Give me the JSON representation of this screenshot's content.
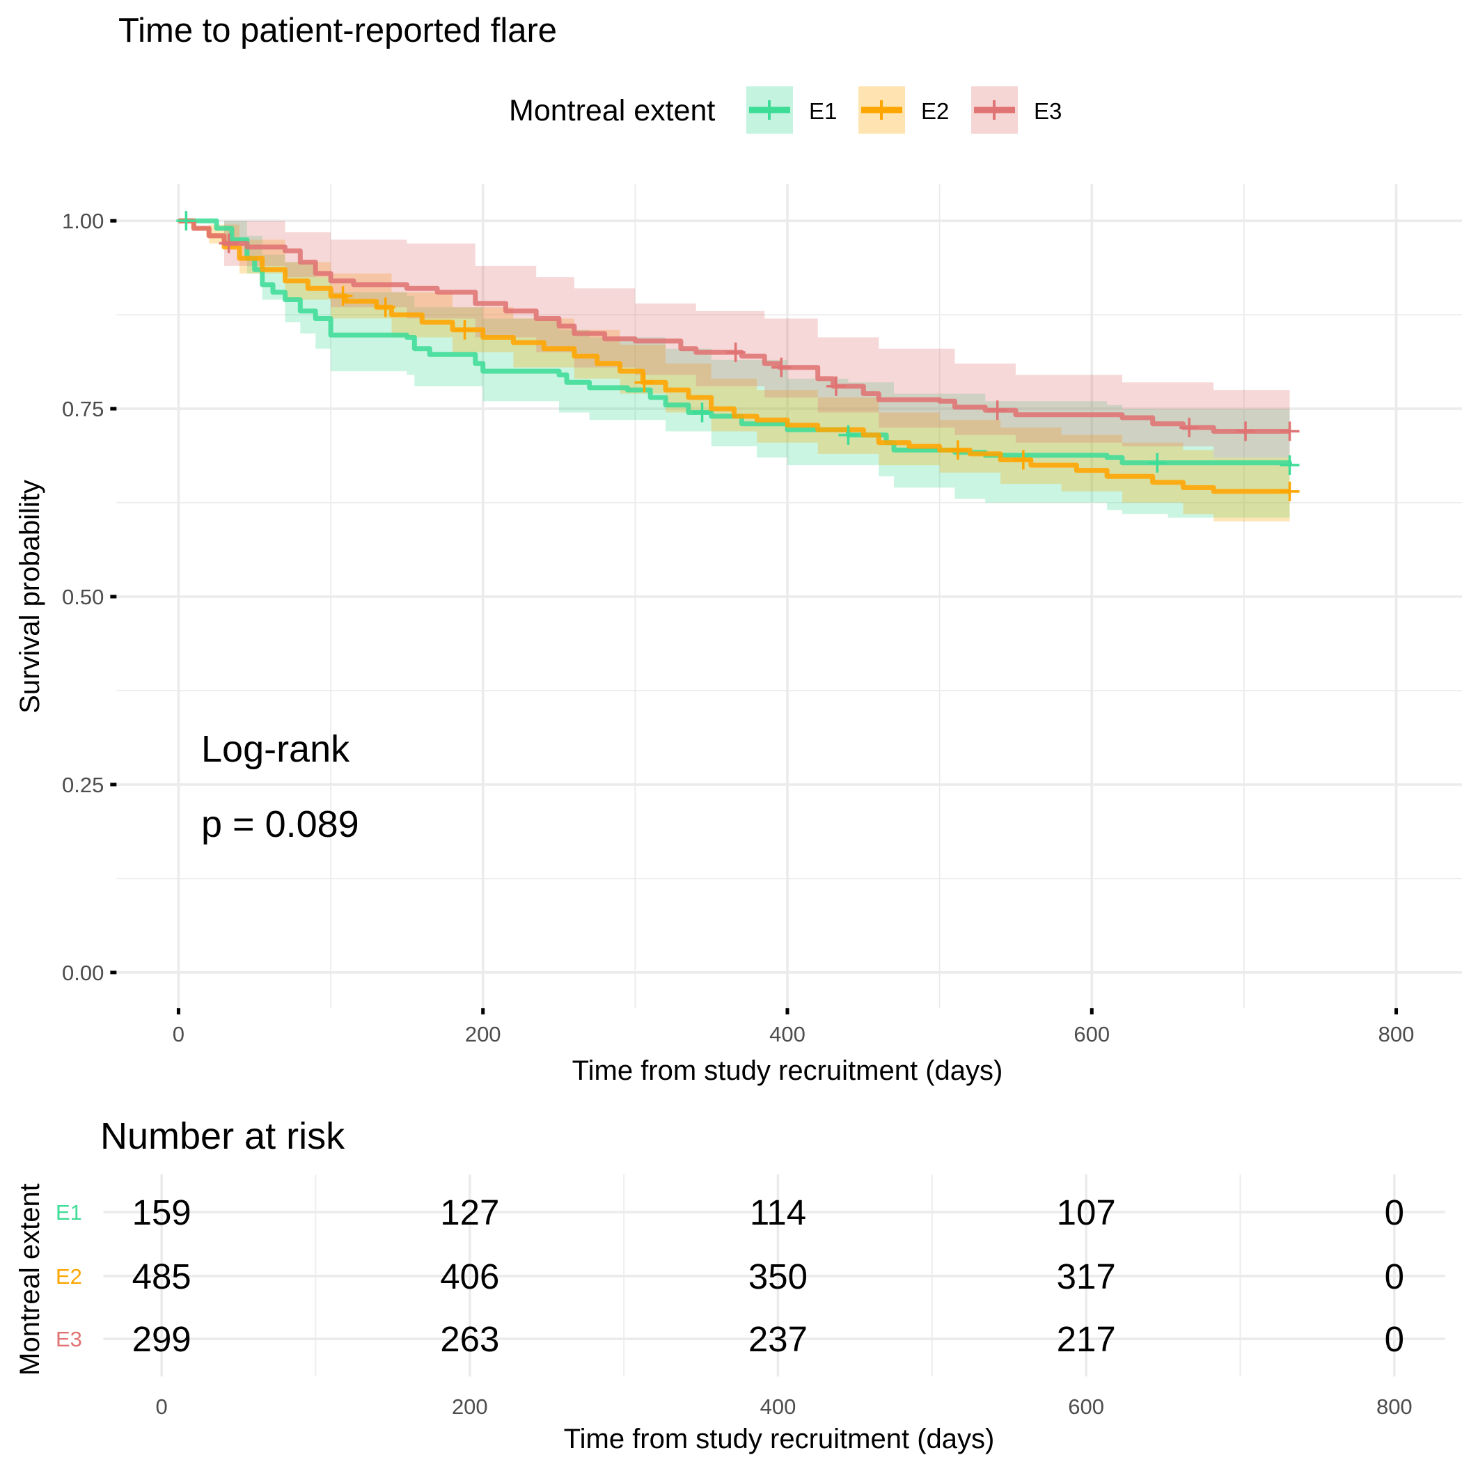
{
  "chart_data": {
    "type": "line",
    "subtype": "kaplan-meier",
    "title": "Time to patient-reported flare",
    "xlabel": "Time from study recruitment (days)",
    "ylabel": "Survival probability",
    "xlim": [
      0,
      800
    ],
    "ylim": [
      0,
      1
    ],
    "xticks": [
      0,
      200,
      400,
      600,
      800
    ],
    "yticks": [
      0,
      0.25,
      0.5,
      0.75,
      1.0
    ],
    "ytick_labels": [
      "0.00",
      "0.25",
      "0.50",
      "0.75",
      "1.00"
    ],
    "xtick_labels": [
      "0",
      "200",
      "400",
      "600",
      "800"
    ],
    "grid": true,
    "legend": {
      "title": "Montreal extent",
      "position": "top",
      "entries": [
        "E1",
        "E2",
        "E3"
      ]
    },
    "annotation": {
      "line1": "Log-rank",
      "line2": "p = 0.089"
    },
    "series": [
      {
        "name": "E1",
        "color": "#3DDC97",
        "steps": [
          [
            0,
            1.0
          ],
          [
            25,
            0.99
          ],
          [
            35,
            0.975
          ],
          [
            45,
            0.95
          ],
          [
            50,
            0.935
          ],
          [
            55,
            0.915
          ],
          [
            62,
            0.905
          ],
          [
            70,
            0.895
          ],
          [
            80,
            0.88
          ],
          [
            90,
            0.87
          ],
          [
            100,
            0.848
          ],
          [
            150,
            0.845
          ],
          [
            155,
            0.83
          ],
          [
            165,
            0.822
          ],
          [
            195,
            0.81
          ],
          [
            200,
            0.8
          ],
          [
            250,
            0.795
          ],
          [
            255,
            0.785
          ],
          [
            270,
            0.778
          ],
          [
            295,
            0.775
          ],
          [
            310,
            0.765
          ],
          [
            320,
            0.755
          ],
          [
            335,
            0.745
          ],
          [
            350,
            0.74
          ],
          [
            370,
            0.73
          ],
          [
            400,
            0.722
          ],
          [
            440,
            0.715
          ],
          [
            465,
            0.705
          ],
          [
            470,
            0.695
          ],
          [
            510,
            0.692
          ],
          [
            530,
            0.688
          ],
          [
            610,
            0.685
          ],
          [
            620,
            0.678
          ],
          [
            730,
            0.675
          ]
        ],
        "lower": [
          [
            0,
            1.0
          ],
          [
            30,
            0.97
          ],
          [
            45,
            0.93
          ],
          [
            55,
            0.895
          ],
          [
            70,
            0.865
          ],
          [
            80,
            0.85
          ],
          [
            90,
            0.83
          ],
          [
            100,
            0.8
          ],
          [
            150,
            0.795
          ],
          [
            155,
            0.78
          ],
          [
            200,
            0.76
          ],
          [
            250,
            0.745
          ],
          [
            270,
            0.735
          ],
          [
            320,
            0.72
          ],
          [
            350,
            0.7
          ],
          [
            380,
            0.685
          ],
          [
            400,
            0.675
          ],
          [
            460,
            0.66
          ],
          [
            470,
            0.645
          ],
          [
            510,
            0.63
          ],
          [
            530,
            0.625
          ],
          [
            610,
            0.615
          ],
          [
            620,
            0.61
          ],
          [
            650,
            0.605
          ],
          [
            730,
            0.6
          ]
        ],
        "upper": [
          [
            0,
            1.0
          ],
          [
            30,
            1.0
          ],
          [
            45,
            0.98
          ],
          [
            55,
            0.955
          ],
          [
            70,
            0.945
          ],
          [
            90,
            0.925
          ],
          [
            100,
            0.905
          ],
          [
            150,
            0.9
          ],
          [
            155,
            0.885
          ],
          [
            200,
            0.87
          ],
          [
            250,
            0.855
          ],
          [
            270,
            0.845
          ],
          [
            320,
            0.83
          ],
          [
            350,
            0.815
          ],
          [
            400,
            0.79
          ],
          [
            440,
            0.785
          ],
          [
            470,
            0.77
          ],
          [
            530,
            0.76
          ],
          [
            610,
            0.755
          ],
          [
            620,
            0.75
          ],
          [
            730,
            0.745
          ]
        ],
        "censor_times": [
          5,
          344,
          440,
          643,
          730
        ]
      },
      {
        "name": "E2",
        "color": "#FFA500",
        "steps": [
          [
            0,
            1.0
          ],
          [
            10,
            0.99
          ],
          [
            20,
            0.98
          ],
          [
            30,
            0.965
          ],
          [
            40,
            0.95
          ],
          [
            55,
            0.935
          ],
          [
            70,
            0.92
          ],
          [
            85,
            0.91
          ],
          [
            100,
            0.9
          ],
          [
            110,
            0.893
          ],
          [
            130,
            0.885
          ],
          [
            140,
            0.875
          ],
          [
            160,
            0.865
          ],
          [
            180,
            0.855
          ],
          [
            200,
            0.845
          ],
          [
            220,
            0.838
          ],
          [
            240,
            0.83
          ],
          [
            260,
            0.82
          ],
          [
            275,
            0.81
          ],
          [
            290,
            0.8
          ],
          [
            305,
            0.785
          ],
          [
            320,
            0.775
          ],
          [
            335,
            0.765
          ],
          [
            350,
            0.75
          ],
          [
            365,
            0.74
          ],
          [
            380,
            0.735
          ],
          [
            400,
            0.728
          ],
          [
            420,
            0.722
          ],
          [
            450,
            0.715
          ],
          [
            460,
            0.705
          ],
          [
            480,
            0.7
          ],
          [
            500,
            0.695
          ],
          [
            520,
            0.69
          ],
          [
            540,
            0.682
          ],
          [
            560,
            0.675
          ],
          [
            590,
            0.668
          ],
          [
            610,
            0.66
          ],
          [
            640,
            0.652
          ],
          [
            660,
            0.645
          ],
          [
            680,
            0.64
          ],
          [
            730,
            0.64
          ]
        ],
        "lower": [
          [
            0,
            1.0
          ],
          [
            20,
            0.97
          ],
          [
            40,
            0.93
          ],
          [
            70,
            0.895
          ],
          [
            100,
            0.87
          ],
          [
            140,
            0.845
          ],
          [
            180,
            0.825
          ],
          [
            220,
            0.805
          ],
          [
            260,
            0.79
          ],
          [
            290,
            0.77
          ],
          [
            320,
            0.745
          ],
          [
            350,
            0.72
          ],
          [
            380,
            0.705
          ],
          [
            420,
            0.69
          ],
          [
            460,
            0.675
          ],
          [
            500,
            0.665
          ],
          [
            540,
            0.65
          ],
          [
            580,
            0.64
          ],
          [
            620,
            0.625
          ],
          [
            660,
            0.61
          ],
          [
            680,
            0.6
          ],
          [
            730,
            0.6
          ]
        ],
        "upper": [
          [
            0,
            1.0
          ],
          [
            20,
            0.995
          ],
          [
            40,
            0.975
          ],
          [
            70,
            0.945
          ],
          [
            100,
            0.93
          ],
          [
            140,
            0.905
          ],
          [
            180,
            0.885
          ],
          [
            220,
            0.87
          ],
          [
            260,
            0.855
          ],
          [
            290,
            0.835
          ],
          [
            320,
            0.81
          ],
          [
            350,
            0.79
          ],
          [
            380,
            0.775
          ],
          [
            420,
            0.765
          ],
          [
            460,
            0.745
          ],
          [
            500,
            0.735
          ],
          [
            540,
            0.725
          ],
          [
            580,
            0.715
          ],
          [
            620,
            0.705
          ],
          [
            660,
            0.695
          ],
          [
            680,
            0.685
          ],
          [
            730,
            0.685
          ]
        ],
        "censor_times": [
          108,
          136,
          188,
          306,
          512,
          555,
          730
        ]
      },
      {
        "name": "E3",
        "color": "#E07373",
        "steps": [
          [
            0,
            1.0
          ],
          [
            10,
            0.99
          ],
          [
            20,
            0.98
          ],
          [
            30,
            0.97
          ],
          [
            45,
            0.965
          ],
          [
            70,
            0.96
          ],
          [
            80,
            0.945
          ],
          [
            90,
            0.93
          ],
          [
            100,
            0.92
          ],
          [
            115,
            0.915
          ],
          [
            150,
            0.91
          ],
          [
            170,
            0.905
          ],
          [
            195,
            0.89
          ],
          [
            215,
            0.88
          ],
          [
            235,
            0.87
          ],
          [
            250,
            0.86
          ],
          [
            260,
            0.85
          ],
          [
            280,
            0.843
          ],
          [
            300,
            0.84
          ],
          [
            330,
            0.83
          ],
          [
            340,
            0.825
          ],
          [
            370,
            0.82
          ],
          [
            385,
            0.81
          ],
          [
            395,
            0.805
          ],
          [
            420,
            0.79
          ],
          [
            430,
            0.78
          ],
          [
            450,
            0.77
          ],
          [
            460,
            0.762
          ],
          [
            500,
            0.76
          ],
          [
            510,
            0.752
          ],
          [
            530,
            0.748
          ],
          [
            550,
            0.742
          ],
          [
            620,
            0.738
          ],
          [
            640,
            0.73
          ],
          [
            660,
            0.725
          ],
          [
            680,
            0.72
          ],
          [
            730,
            0.72
          ]
        ],
        "lower": [
          [
            0,
            1.0
          ],
          [
            30,
            0.94
          ],
          [
            70,
            0.925
          ],
          [
            100,
            0.885
          ],
          [
            150,
            0.87
          ],
          [
            195,
            0.845
          ],
          [
            235,
            0.825
          ],
          [
            260,
            0.805
          ],
          [
            300,
            0.795
          ],
          [
            340,
            0.78
          ],
          [
            385,
            0.765
          ],
          [
            420,
            0.745
          ],
          [
            460,
            0.725
          ],
          [
            510,
            0.715
          ],
          [
            550,
            0.705
          ],
          [
            620,
            0.7
          ],
          [
            680,
            0.685
          ],
          [
            730,
            0.685
          ]
        ],
        "upper": [
          [
            0,
            1.0
          ],
          [
            30,
            1.0
          ],
          [
            70,
            0.985
          ],
          [
            100,
            0.975
          ],
          [
            150,
            0.97
          ],
          [
            195,
            0.94
          ],
          [
            235,
            0.925
          ],
          [
            260,
            0.91
          ],
          [
            300,
            0.89
          ],
          [
            340,
            0.88
          ],
          [
            385,
            0.87
          ],
          [
            420,
            0.845
          ],
          [
            460,
            0.83
          ],
          [
            510,
            0.81
          ],
          [
            550,
            0.795
          ],
          [
            620,
            0.785
          ],
          [
            680,
            0.775
          ],
          [
            730,
            0.77
          ]
        ],
        "censor_times": [
          33,
          366,
          396,
          432,
          538,
          664,
          701,
          730
        ]
      }
    ],
    "risk_table": {
      "title": "Number at risk",
      "ylabel": "Montreal extent",
      "xlabel": "Time from study recruitment (days)",
      "times": [
        0,
        200,
        400,
        600,
        800
      ],
      "time_labels": [
        "0",
        "200",
        "400",
        "600",
        "800"
      ],
      "rows": [
        {
          "group": "E1",
          "color": "#3DDC97",
          "values": [
            159,
            127,
            114,
            107,
            0
          ]
        },
        {
          "group": "E2",
          "color": "#FFA500",
          "values": [
            485,
            406,
            350,
            317,
            0
          ]
        },
        {
          "group": "E3",
          "color": "#E07373",
          "values": [
            299,
            263,
            237,
            217,
            0
          ]
        }
      ]
    }
  }
}
